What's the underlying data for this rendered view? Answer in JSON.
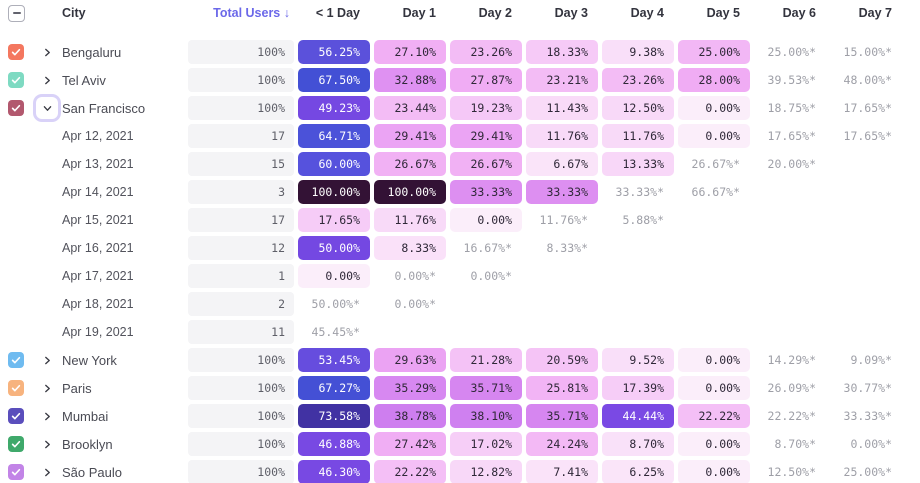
{
  "header": {
    "city_label": "City",
    "total_users_label": "Total Users",
    "sort_indicator": "↓",
    "total_users_color": "#6B68E9",
    "day_columns": [
      "< 1 Day",
      "Day 1",
      "Day 2",
      "Day 3",
      "Day 4",
      "Day 5",
      "Day 6",
      "Day 7"
    ],
    "select_all_state": "indeterminate"
  },
  "heat": {
    "ramp": [
      {
        "stop": 0,
        "color": "#FBEEFA"
      },
      {
        "stop": 7,
        "color": "#FAE4F9"
      },
      {
        "stop": 13,
        "color": "#F8D8F8"
      },
      {
        "stop": 18,
        "color": "#F6CBF7"
      },
      {
        "stop": 24,
        "color": "#F3BAF5"
      },
      {
        "stop": 28,
        "color": "#F0ACF4"
      },
      {
        "stop": 31,
        "color": "#E69CF3"
      },
      {
        "stop": 34,
        "color": "#DB8BF1"
      },
      {
        "stop": 37,
        "color": "#D283F0"
      },
      {
        "stop": 40,
        "color": "#CB7BEF"
      },
      {
        "stop": 44,
        "color": "#7B49E4"
      },
      {
        "stop": 50,
        "color": "#7448E2"
      },
      {
        "stop": 56,
        "color": "#5B51DB"
      },
      {
        "stop": 61,
        "color": "#5552DE"
      },
      {
        "stop": 65,
        "color": "#4A52D9"
      },
      {
        "stop": 68,
        "color": "#4250D4"
      },
      {
        "stop": 74,
        "color": "#41309F"
      },
      {
        "stop": 87,
        "color": "#392056"
      },
      {
        "stop": 100,
        "color": "#331235"
      }
    ],
    "white_text_min": 42,
    "dark_text_color": "#2F2838",
    "pending_text_color": "#9E9FA7",
    "focus_ring_color": "#D9D2F8"
  },
  "rows": [
    {
      "kind": "city",
      "label": "Bengaluru",
      "checkbox_color": "#F4775F",
      "checked": true,
      "expanded": false,
      "total": "100%",
      "cells": [
        {
          "t": "56.25%",
          "v": 56.25
        },
        {
          "t": "27.10%",
          "v": 27.1
        },
        {
          "t": "23.26%",
          "v": 23.26
        },
        {
          "t": "18.33%",
          "v": 18.33
        },
        {
          "t": "9.38%",
          "v": 9.38
        },
        {
          "t": "25.00%",
          "v": 25.0
        },
        {
          "t": "25.00%*",
          "pending": true
        },
        {
          "t": "15.00%*",
          "pending": true
        }
      ]
    },
    {
      "kind": "city",
      "label": "Tel Aviv",
      "checkbox_color": "#7EDAC2",
      "checked": true,
      "expanded": false,
      "total": "100%",
      "cells": [
        {
          "t": "67.50%",
          "v": 67.5
        },
        {
          "t": "32.88%",
          "v": 32.88
        },
        {
          "t": "27.87%",
          "v": 27.87
        },
        {
          "t": "23.21%",
          "v": 23.21
        },
        {
          "t": "23.26%",
          "v": 23.26
        },
        {
          "t": "28.00%",
          "v": 28.0
        },
        {
          "t": "39.53%*",
          "pending": true
        },
        {
          "t": "48.00%*",
          "pending": true
        }
      ]
    },
    {
      "kind": "city",
      "label": "San Francisco",
      "checkbox_color": "#B2586E",
      "checked": true,
      "expanded": true,
      "total": "100%",
      "cells": [
        {
          "t": "49.23%",
          "v": 49.23
        },
        {
          "t": "23.44%",
          "v": 23.44
        },
        {
          "t": "19.23%",
          "v": 19.23
        },
        {
          "t": "11.43%",
          "v": 11.43
        },
        {
          "t": "12.50%",
          "v": 12.5
        },
        {
          "t": "0.00%",
          "v": 0
        },
        {
          "t": "18.75%*",
          "pending": true
        },
        {
          "t": "17.65%*",
          "pending": true
        }
      ]
    },
    {
      "kind": "date",
      "label": "Apr 12, 2021",
      "total": "17",
      "cells": [
        {
          "t": "64.71%",
          "v": 64.71
        },
        {
          "t": "29.41%",
          "v": 29.41
        },
        {
          "t": "29.41%",
          "v": 29.41
        },
        {
          "t": "11.76%",
          "v": 11.76
        },
        {
          "t": "11.76%",
          "v": 11.76
        },
        {
          "t": "0.00%",
          "v": 0
        },
        {
          "t": "17.65%*",
          "pending": true
        },
        {
          "t": "17.65%*",
          "pending": true
        }
      ]
    },
    {
      "kind": "date",
      "label": "Apr 13, 2021",
      "total": "15",
      "cells": [
        {
          "t": "60.00%",
          "v": 60.0
        },
        {
          "t": "26.67%",
          "v": 26.67
        },
        {
          "t": "26.67%",
          "v": 26.67
        },
        {
          "t": "6.67%",
          "v": 6.67
        },
        {
          "t": "13.33%",
          "v": 13.33
        },
        {
          "t": "26.67%*",
          "pending": true
        },
        {
          "t": "20.00%*",
          "pending": true
        },
        null
      ]
    },
    {
      "kind": "date",
      "label": "Apr 14, 2021",
      "total": "3",
      "cells": [
        {
          "t": "100.00%",
          "v": 100
        },
        {
          "t": "100.00%",
          "v": 100
        },
        {
          "t": "33.33%",
          "v": 33.33
        },
        {
          "t": "33.33%",
          "v": 33.33
        },
        {
          "t": "33.33%*",
          "pending": true
        },
        {
          "t": "66.67%*",
          "pending": true
        },
        null,
        null
      ]
    },
    {
      "kind": "date",
      "label": "Apr 15, 2021",
      "total": "17",
      "cells": [
        {
          "t": "17.65%",
          "v": 17.65
        },
        {
          "t": "11.76%",
          "v": 11.76
        },
        {
          "t": "0.00%",
          "v": 0
        },
        {
          "t": "11.76%*",
          "pending": true
        },
        {
          "t": "5.88%*",
          "pending": true
        },
        null,
        null,
        null
      ]
    },
    {
      "kind": "date",
      "label": "Apr 16, 2021",
      "total": "12",
      "cells": [
        {
          "t": "50.00%",
          "v": 50.0
        },
        {
          "t": "8.33%",
          "v": 8.33
        },
        {
          "t": "16.67%*",
          "pending": true
        },
        {
          "t": "8.33%*",
          "pending": true
        },
        null,
        null,
        null,
        null
      ]
    },
    {
      "kind": "date",
      "label": "Apr 17, 2021",
      "total": "1",
      "cells": [
        {
          "t": "0.00%",
          "v": 0
        },
        {
          "t": "0.00%*",
          "pending": true
        },
        {
          "t": "0.00%*",
          "pending": true
        },
        null,
        null,
        null,
        null,
        null
      ]
    },
    {
      "kind": "date",
      "label": "Apr 18, 2021",
      "total": "2",
      "cells": [
        {
          "t": "50.00%*",
          "pending": true
        },
        {
          "t": "0.00%*",
          "pending": true
        },
        null,
        null,
        null,
        null,
        null,
        null
      ]
    },
    {
      "kind": "date",
      "label": "Apr 19, 2021",
      "total": "11",
      "cells": [
        {
          "t": "45.45%*",
          "pending": true
        },
        null,
        null,
        null,
        null,
        null,
        null,
        null
      ]
    },
    {
      "kind": "city",
      "label": "New York",
      "checkbox_color": "#6FBBF0",
      "checked": true,
      "expanded": false,
      "total": "100%",
      "cells": [
        {
          "t": "53.45%",
          "v": 53.45
        },
        {
          "t": "29.63%",
          "v": 29.63
        },
        {
          "t": "21.28%",
          "v": 21.28
        },
        {
          "t": "20.59%",
          "v": 20.59
        },
        {
          "t": "9.52%",
          "v": 9.52
        },
        {
          "t": "0.00%",
          "v": 0
        },
        {
          "t": "14.29%*",
          "pending": true
        },
        {
          "t": "9.09%*",
          "pending": true
        }
      ]
    },
    {
      "kind": "city",
      "label": "Paris",
      "checkbox_color": "#F7B37E",
      "checked": true,
      "expanded": false,
      "total": "100%",
      "cells": [
        {
          "t": "67.27%",
          "v": 67.27
        },
        {
          "t": "35.29%",
          "v": 35.29
        },
        {
          "t": "35.71%",
          "v": 35.71
        },
        {
          "t": "25.81%",
          "v": 25.81
        },
        {
          "t": "17.39%",
          "v": 17.39
        },
        {
          "t": "0.00%",
          "v": 0
        },
        {
          "t": "26.09%*",
          "pending": true
        },
        {
          "t": "30.77%*",
          "pending": true
        }
      ]
    },
    {
      "kind": "city",
      "label": "Mumbai",
      "checkbox_color": "#5A4EBC",
      "checked": true,
      "expanded": false,
      "total": "100%",
      "cells": [
        {
          "t": "73.58%",
          "v": 73.58
        },
        {
          "t": "38.78%",
          "v": 38.78
        },
        {
          "t": "38.10%",
          "v": 38.1
        },
        {
          "t": "35.71%",
          "v": 35.71
        },
        {
          "t": "44.44%",
          "v": 44.44
        },
        {
          "t": "22.22%",
          "v": 22.22
        },
        {
          "t": "22.22%*",
          "pending": true
        },
        {
          "t": "33.33%*",
          "pending": true
        }
      ]
    },
    {
      "kind": "city",
      "label": "Brooklyn",
      "checkbox_color": "#3FA96B",
      "checked": true,
      "expanded": false,
      "total": "100%",
      "cells": [
        {
          "t": "46.88%",
          "v": 46.88
        },
        {
          "t": "27.42%",
          "v": 27.42
        },
        {
          "t": "17.02%",
          "v": 17.02
        },
        {
          "t": "24.24%",
          "v": 24.24
        },
        {
          "t": "8.70%",
          "v": 8.7
        },
        {
          "t": "0.00%",
          "v": 0
        },
        {
          "t": "8.70%*",
          "pending": true
        },
        {
          "t": "0.00%*",
          "pending": true
        }
      ]
    },
    {
      "kind": "city",
      "label": "São Paulo",
      "checkbox_color": "#C284E7",
      "checked": true,
      "expanded": false,
      "total": "100%",
      "cells": [
        {
          "t": "46.30%",
          "v": 46.3
        },
        {
          "t": "22.22%",
          "v": 22.22
        },
        {
          "t": "12.82%",
          "v": 12.82
        },
        {
          "t": "7.41%",
          "v": 7.41
        },
        {
          "t": "6.25%",
          "v": 6.25
        },
        {
          "t": "0.00%",
          "v": 0
        },
        {
          "t": "12.50%*",
          "pending": true
        },
        {
          "t": "25.00%*",
          "pending": true
        }
      ]
    }
  ]
}
